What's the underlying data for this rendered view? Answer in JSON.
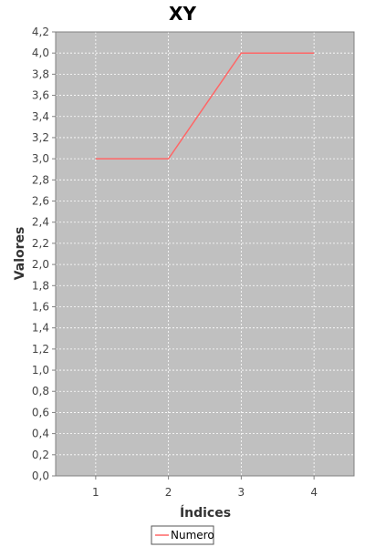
{
  "chart_data": {
    "type": "line",
    "title": "XY",
    "xlabel": "Índices",
    "ylabel": "Valores",
    "x": [
      1,
      2,
      3,
      4
    ],
    "series": [
      {
        "name": "Numero",
        "values": [
          3.0,
          3.0,
          4.0,
          4.0
        ],
        "color": "#ff6666"
      }
    ],
    "x_ticks": [
      "1",
      "2",
      "3",
      "4"
    ],
    "y_ticks": [
      "0,0",
      "0,2",
      "0,4",
      "0,6",
      "0,8",
      "1,0",
      "1,2",
      "1,4",
      "1,6",
      "1,8",
      "2,0",
      "2,2",
      "2,4",
      "2,6",
      "2,8",
      "3,0",
      "3,2",
      "3,4",
      "3,6",
      "3,8",
      "4,0",
      "4,2"
    ],
    "xlim": [
      0.45,
      4.55
    ],
    "ylim": [
      0,
      4.2
    ],
    "grid": true,
    "legend_position": "bottom",
    "plot_background": "#c0c0c0"
  }
}
